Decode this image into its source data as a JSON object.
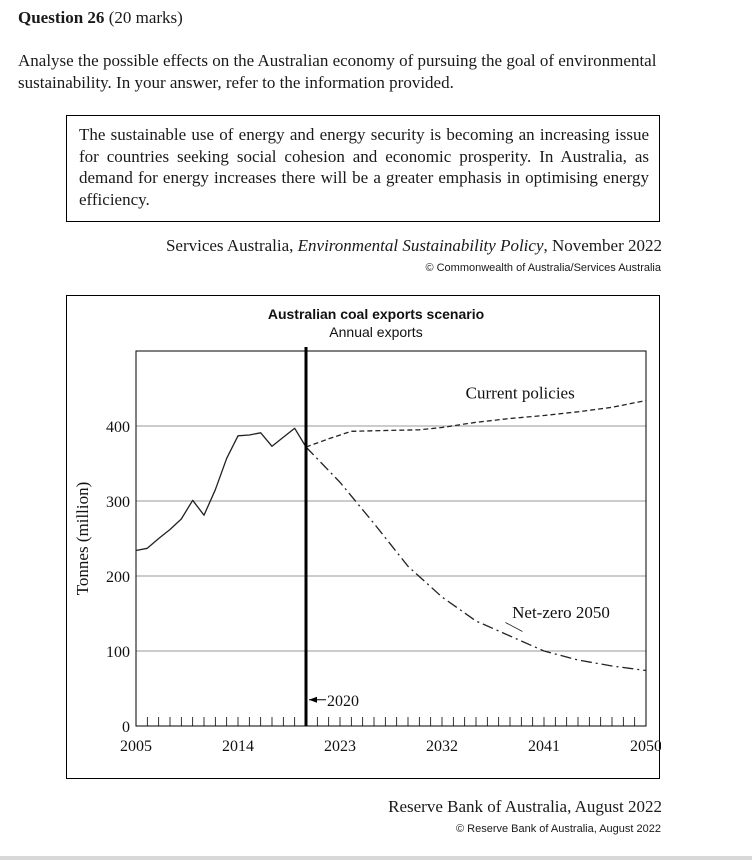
{
  "question": {
    "label": "Question 26",
    "marks": "(20 marks)",
    "prompt": "Analyse the possible effects on the Australian economy of pursuing the goal of environmental sustainability. In your answer, refer to the information provided."
  },
  "quote": {
    "text": "The sustainable use of energy and energy security is becoming an increasing issue for countries seeking social cohesion and economic prosperity. In Australia, as demand for energy increases there will be a greater emphasis in optimising energy efficiency.",
    "source_prefix": "Services Australia, ",
    "source_title": "Environmental Sustainability Policy",
    "source_suffix": ", November 2022",
    "copyright": "© Commonwealth of Australia/Services Australia"
  },
  "chart_source": {
    "text": "Reserve Bank of Australia, August 2022",
    "copyright": "© Reserve Bank of Australia, August 2022"
  },
  "chart_data": {
    "type": "line",
    "title": "Australian coal exports scenario",
    "subtitle": "Annual exports",
    "xlabel": "",
    "ylabel": "Tonnes (million)",
    "xlim": [
      2005,
      2050
    ],
    "ylim": [
      0,
      500
    ],
    "xticks": [
      2005,
      2014,
      2023,
      2032,
      2041,
      2050
    ],
    "yticks": [
      0,
      100,
      200,
      300,
      400
    ],
    "grid": true,
    "marker": {
      "x": 2020,
      "label": "2020"
    },
    "series": [
      {
        "name": "",
        "style": "solid",
        "x": [
          2005,
          2006,
          2007,
          2008,
          2009,
          2010,
          2011,
          2012,
          2013,
          2014,
          2015,
          2016,
          2017,
          2018,
          2019,
          2020
        ],
        "y": [
          234,
          237,
          250,
          262,
          276,
          301,
          281,
          315,
          357,
          387,
          388,
          391,
          373,
          385,
          397,
          372
        ]
      },
      {
        "name": "Current policies",
        "style": "dashed",
        "x": [
          2020,
          2022,
          2024,
          2027,
          2030,
          2032,
          2035,
          2038,
          2041,
          2044,
          2047,
          2050
        ],
        "y": [
          372,
          383,
          393,
          394,
          395,
          398,
          405,
          410,
          414,
          419,
          425,
          434
        ]
      },
      {
        "name": "Net-zero 2050",
        "style": "dashdot",
        "x": [
          2020,
          2023,
          2026,
          2029,
          2032,
          2035,
          2038,
          2041,
          2044,
          2047,
          2050
        ],
        "y": [
          372,
          325,
          270,
          213,
          172,
          140,
          120,
          100,
          88,
          80,
          74
        ]
      }
    ]
  }
}
